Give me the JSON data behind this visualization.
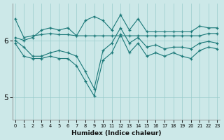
{
  "xlabel": "Humidex (Indice chaleur)",
  "bg_color": "#cce8e8",
  "line_color": "#1a7878",
  "grid_color": "#99cccc",
  "x_ticks": [
    0,
    1,
    2,
    3,
    4,
    5,
    6,
    7,
    8,
    9,
    10,
    11,
    12,
    13,
    14,
    15,
    16,
    17,
    18,
    19,
    20,
    21,
    22,
    23
  ],
  "y_ticks": [
    5,
    6
  ],
  "ylim": [
    4.6,
    6.65
  ],
  "xlim": [
    -0.3,
    23.3
  ],
  "series": [
    [
      6.38,
      6.05,
      6.08,
      6.1,
      6.12,
      6.1,
      6.1,
      6.08,
      6.08,
      6.08,
      6.08,
      6.08,
      6.08,
      6.08,
      6.08,
      6.08,
      6.08,
      6.08,
      6.08,
      6.08,
      6.08,
      6.08,
      6.12,
      6.12
    ],
    [
      6.05,
      6.0,
      6.05,
      6.18,
      6.22,
      6.18,
      6.22,
      6.08,
      6.35,
      6.42,
      6.35,
      6.18,
      6.45,
      6.18,
      6.38,
      6.15,
      6.15,
      6.15,
      6.15,
      6.15,
      6.15,
      6.25,
      6.22,
      6.22
    ],
    [
      6.0,
      5.88,
      5.72,
      5.72,
      5.78,
      5.82,
      5.78,
      5.72,
      5.45,
      5.15,
      5.82,
      5.95,
      6.22,
      5.95,
      6.05,
      5.88,
      5.92,
      5.85,
      5.88,
      5.88,
      5.85,
      5.95,
      5.98,
      5.95
    ],
    [
      5.95,
      5.72,
      5.68,
      5.68,
      5.72,
      5.68,
      5.68,
      5.55,
      5.28,
      5.02,
      5.65,
      5.78,
      6.1,
      5.78,
      5.95,
      5.72,
      5.78,
      5.72,
      5.78,
      5.72,
      5.68,
      5.82,
      5.88,
      5.85
    ]
  ]
}
